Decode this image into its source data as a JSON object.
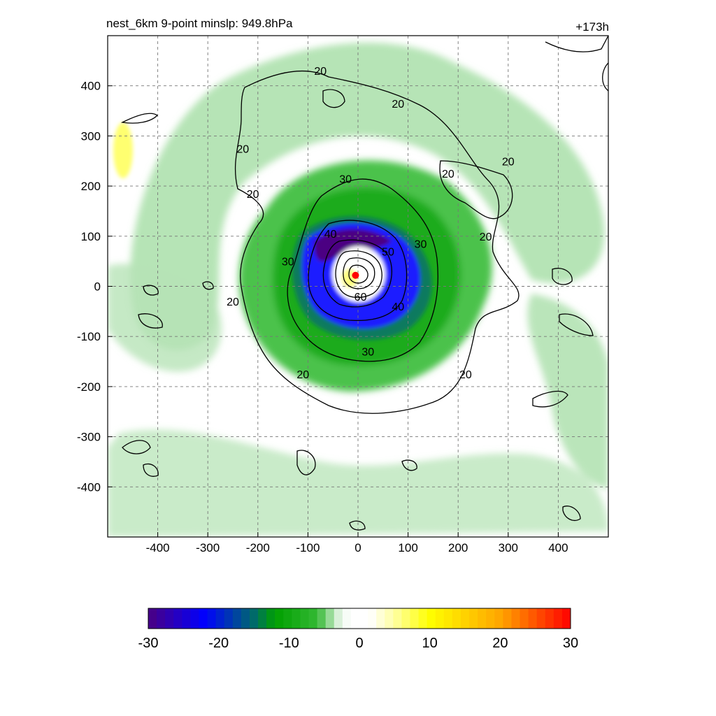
{
  "title": {
    "left": "nest_6km  9-point minslp: 949.8hPa",
    "right": "+173h"
  },
  "chart_data": {
    "type": "heatmap",
    "xlim": [
      -500,
      500
    ],
    "ylim": [
      -500,
      500
    ],
    "x_ticks": [
      -400,
      -300,
      -200,
      -100,
      0,
      100,
      200,
      300,
      400
    ],
    "y_ticks": [
      -400,
      -300,
      -200,
      -100,
      0,
      100,
      200,
      300,
      400
    ],
    "x_tick_labels": [
      "-400",
      "-300",
      "-200",
      "-100",
      "0",
      "100",
      "200",
      "300",
      "400"
    ],
    "y_tick_labels": [
      "400",
      "300",
      "200",
      "100",
      "0",
      "-100",
      "-200",
      "-300",
      "-400"
    ],
    "grid": true,
    "colorbar": {
      "range": [
        -30,
        30
      ],
      "tick_values": [
        -30,
        -20,
        -10,
        0,
        10,
        20,
        30
      ],
      "tick_labels": [
        "-30",
        "-20",
        "-10",
        "0",
        "10",
        "20",
        "30"
      ],
      "stops": [
        {
          "v": -30,
          "color": "#4b0082"
        },
        {
          "v": -22,
          "color": "#0000ff"
        },
        {
          "v": -15,
          "color": "#006a6a"
        },
        {
          "v": -12,
          "color": "#00a000"
        },
        {
          "v": -6,
          "color": "#33b833"
        },
        {
          "v": -3,
          "color": "#d9f0d9"
        },
        {
          "v": -1.5,
          "color": "#ffffff"
        },
        {
          "v": 1.5,
          "color": "#ffffff"
        },
        {
          "v": 5,
          "color": "#ffffa0"
        },
        {
          "v": 10,
          "color": "#ffff00"
        },
        {
          "v": 20,
          "color": "#ffa500"
        },
        {
          "v": 30,
          "color": "#ff0000"
        }
      ]
    },
    "contours": {
      "levels": [
        20,
        30,
        40,
        50,
        60
      ],
      "labels": [
        {
          "text": "20",
          "x": -75,
          "y": 430
        },
        {
          "text": "20",
          "x": 80,
          "y": 365
        },
        {
          "text": "20",
          "x": -230,
          "y": 275
        },
        {
          "text": "20",
          "x": -210,
          "y": 185
        },
        {
          "text": "20",
          "x": 180,
          "y": 225
        },
        {
          "text": "20",
          "x": 300,
          "y": 250
        },
        {
          "text": "20",
          "x": 255,
          "y": 100
        },
        {
          "text": "20",
          "x": -250,
          "y": -30
        },
        {
          "text": "20",
          "x": -110,
          "y": -175
        },
        {
          "text": "20",
          "x": 215,
          "y": -175
        },
        {
          "text": "30",
          "x": -25,
          "y": 215
        },
        {
          "text": "30",
          "x": 125,
          "y": 85
        },
        {
          "text": "30",
          "x": -140,
          "y": 50
        },
        {
          "text": "30",
          "x": 20,
          "y": -130
        },
        {
          "text": "40",
          "x": -55,
          "y": 105
        },
        {
          "text": "40",
          "x": 80,
          "y": -40
        },
        {
          "text": "50",
          "x": 60,
          "y": 70
        },
        {
          "text": "60",
          "x": 5,
          "y": -20
        }
      ]
    },
    "center_marker": {
      "x": -5,
      "y": 22,
      "color": "#ff0000"
    }
  }
}
